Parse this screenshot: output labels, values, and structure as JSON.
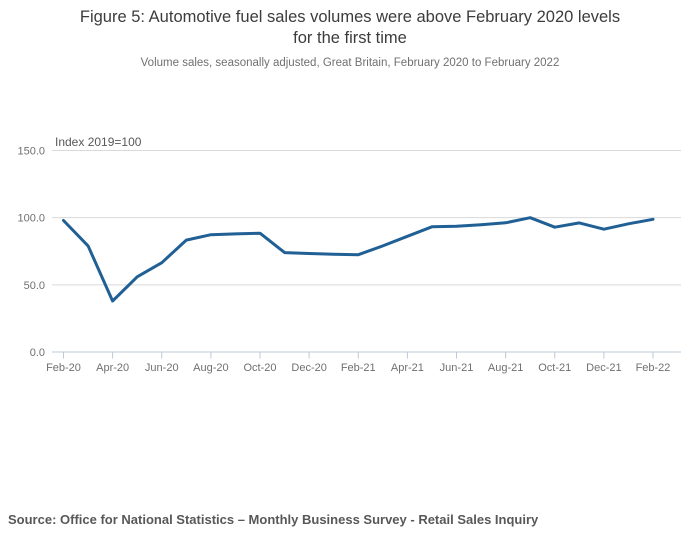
{
  "title_lines": [
    "Figure 5: Automotive fuel sales volumes were above February 2020 levels",
    "for the first time"
  ],
  "subtitle": "Volume sales, seasonally adjusted, Great Britain, February 2020 to February 2022",
  "source": "Source: Office for National Statistics – Monthly Business Survey - Retail Sales Inquiry",
  "chart_data": {
    "type": "line",
    "title": "Figure 5: Automotive fuel sales volumes were above February 2020 levels for the first time",
    "subtitle": "Volume sales, seasonally adjusted, Great Britain, February 2020 to February 2022",
    "axis_note": "Index 2019=100",
    "x": [
      "Feb-20",
      "Mar-20",
      "Apr-20",
      "May-20",
      "Jun-20",
      "Jul-20",
      "Aug-20",
      "Sep-20",
      "Oct-20",
      "Nov-20",
      "Dec-20",
      "Jan-21",
      "Feb-21",
      "Mar-21",
      "Apr-21",
      "May-21",
      "Jun-21",
      "Jul-21",
      "Aug-21",
      "Sep-21",
      "Oct-21",
      "Nov-21",
      "Dec-21",
      "Jan-22",
      "Feb-22"
    ],
    "values": [
      97.9,
      79.0,
      38.0,
      56.0,
      66.5,
      83.3,
      87.3,
      87.9,
      88.4,
      74.0,
      73.3,
      72.7,
      72.4,
      79.0,
      86.1,
      93.2,
      93.6,
      94.7,
      96.2,
      100.0,
      92.9,
      96.1,
      91.4,
      95.4,
      98.8
    ],
    "x_tick_labels": [
      "Feb-20",
      "Apr-20",
      "Jun-20",
      "Aug-20",
      "Oct-20",
      "Dec-20",
      "Feb-21",
      "Apr-21",
      "Jun-21",
      "Aug-21",
      "Oct-21",
      "Dec-21",
      "Feb-22"
    ],
    "x_label_every": 2,
    "y_ticks": [
      0,
      50,
      100,
      150
    ],
    "y_tick_labels": [
      "0.0",
      "50.0",
      "100.0",
      "150.0"
    ],
    "ylim": [
      0,
      150
    ],
    "grid": "horizontal",
    "legend": "none",
    "colors": {
      "line": "#206095",
      "gridline": "#d9d9d9",
      "axis_line": "#bcc8d7",
      "tick_text": "#707071",
      "axis_note_text": "#58585a"
    }
  }
}
